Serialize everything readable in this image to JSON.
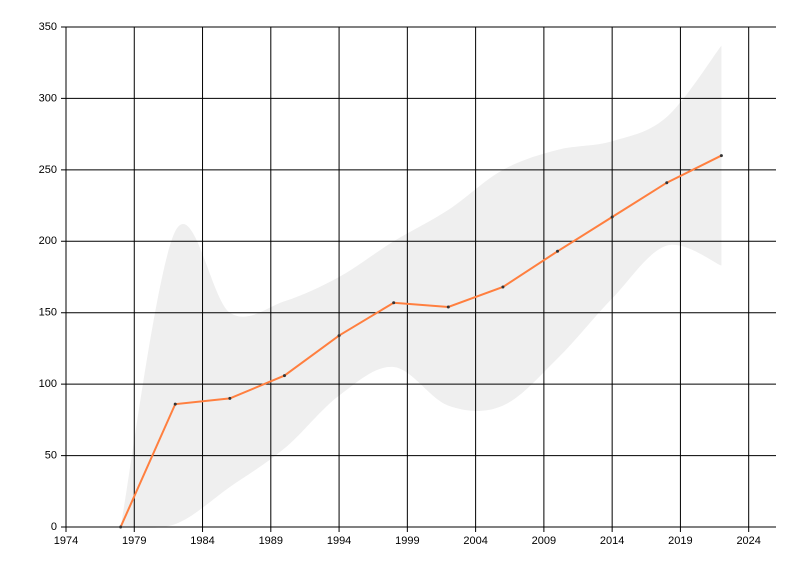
{
  "chart_data": {
    "type": "line",
    "x": [
      1978,
      1982,
      1986,
      1990,
      1994,
      1998,
      2002,
      2006,
      2010,
      2014,
      2018,
      2022
    ],
    "series": [
      {
        "color": "#ff7f3f",
        "values": [
          0,
          86,
          90,
          106,
          134,
          157,
          154,
          168,
          193,
          217,
          241,
          260
        ]
      }
    ],
    "band": {
      "color": "#efefef",
      "upper": [
        0,
        207,
        150,
        158,
        175,
        200,
        222,
        250,
        264,
        270,
        287,
        337
      ],
      "lower": [
        0,
        2,
        28,
        55,
        92,
        112,
        85,
        85,
        118,
        160,
        197,
        183
      ]
    },
    "xlim": [
      1974,
      2026
    ],
    "xticks": [
      1974,
      1979,
      1984,
      1989,
      1994,
      1999,
      2004,
      2009,
      2014,
      2019,
      2024
    ],
    "ylim": [
      0,
      350
    ],
    "yticks": [
      0,
      50,
      100,
      150,
      200,
      250,
      300,
      350
    ],
    "grid": true
  }
}
